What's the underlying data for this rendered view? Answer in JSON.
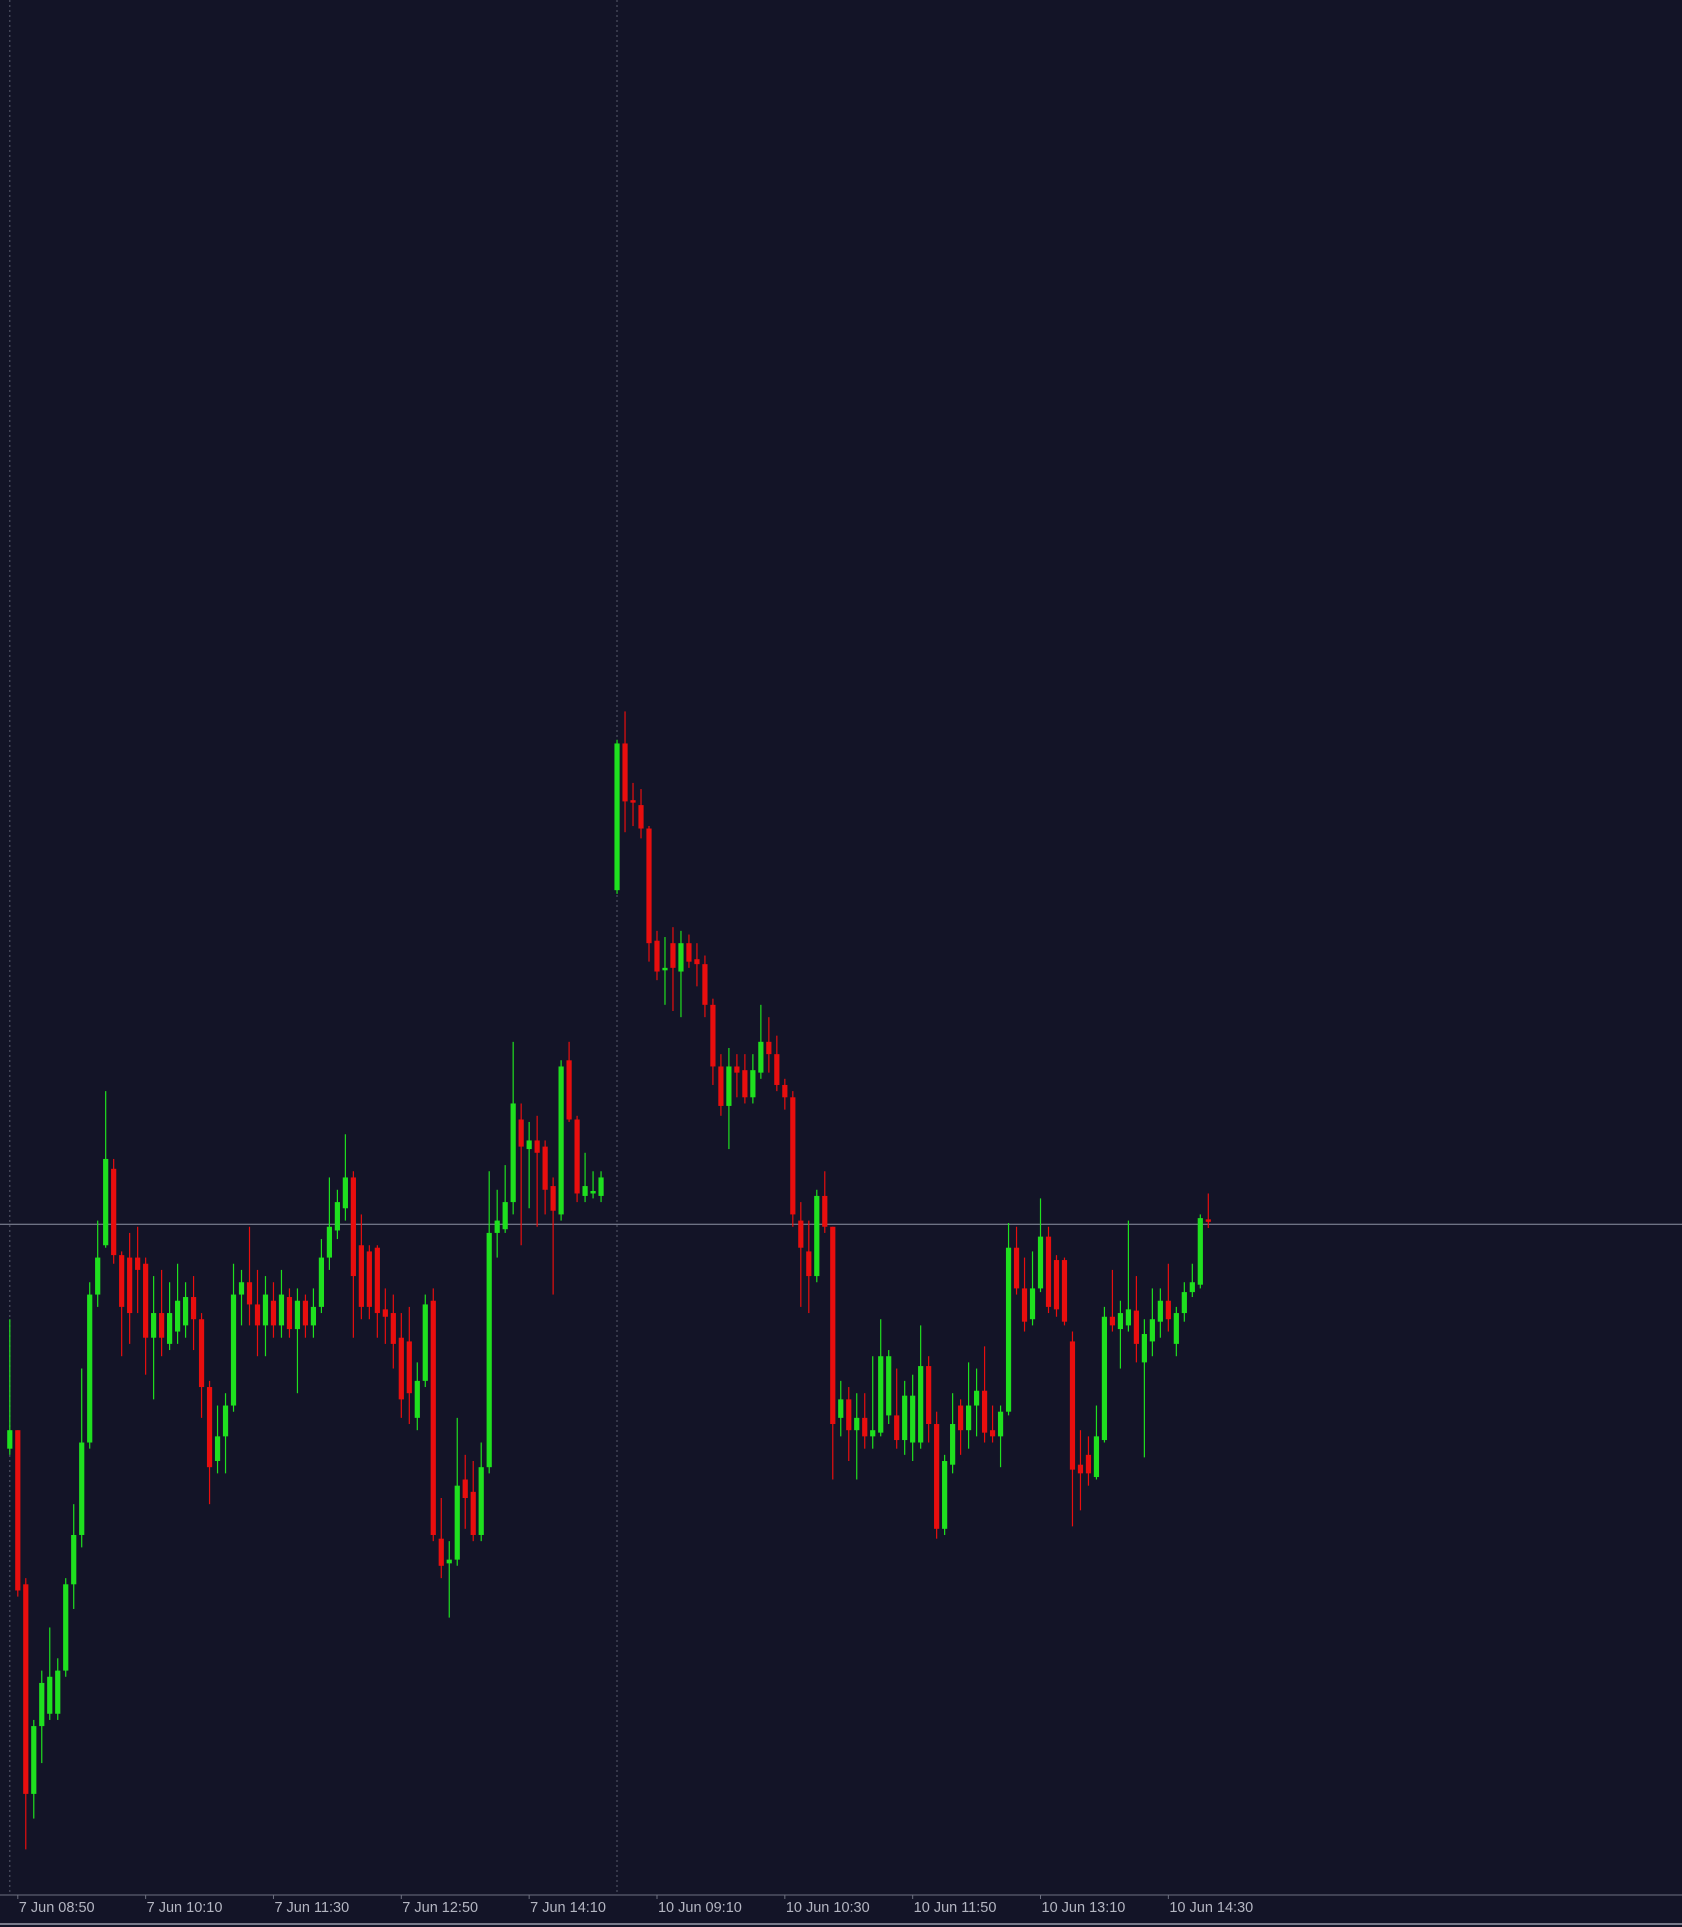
{
  "chart_data": {
    "type": "candlestick",
    "categories": [
      null,
      "7 Jun 08:50",
      null,
      null,
      null,
      null,
      null,
      null,
      null,
      null,
      null,
      null,
      null,
      null,
      null,
      null,
      null,
      "7 Jun 10:10",
      null,
      null,
      null,
      null,
      null,
      null,
      null,
      null,
      null,
      null,
      null,
      null,
      null,
      null,
      null,
      "7 Jun 11:30",
      null,
      null,
      null,
      null,
      null,
      null,
      null,
      null,
      null,
      null,
      null,
      null,
      null,
      null,
      null,
      "7 Jun 12:50",
      null,
      null,
      null,
      null,
      null,
      null,
      null,
      null,
      null,
      null,
      null,
      null,
      null,
      null,
      null,
      "7 Jun 14:10",
      null,
      null,
      null,
      null,
      null,
      null,
      null,
      null,
      null,
      null,
      null,
      null,
      null,
      null,
      null,
      "10 Jun 09:10",
      null,
      null,
      null,
      null,
      null,
      null,
      null,
      null,
      null,
      null,
      null,
      null,
      null,
      null,
      null,
      "10 Jun 10:30",
      null,
      null,
      null,
      null,
      null,
      null,
      null,
      null,
      null,
      null,
      null,
      null,
      null,
      null,
      null,
      "10 Jun 11:50",
      null,
      null,
      null,
      null,
      null,
      null,
      null,
      null,
      null,
      null,
      null,
      null,
      null,
      null,
      null,
      "10 Jun 13:10",
      null,
      null,
      null,
      null,
      null,
      null,
      null,
      null,
      null,
      null,
      null,
      null,
      null,
      null,
      null,
      "10 Jun 14:30",
      null,
      null,
      null,
      null,
      null
    ],
    "open": [
      325,
      340,
      215,
      45,
      100,
      110,
      110,
      145,
      215,
      255,
      330,
      450,
      490,
      552,
      482,
      480,
      480,
      475,
      415,
      435,
      410,
      420,
      425,
      448,
      430,
      375,
      315,
      335,
      360,
      450,
      460,
      442,
      425,
      445,
      425,
      448,
      422,
      445,
      425,
      440,
      480,
      502,
      520,
      545,
      490,
      485,
      488,
      438,
      435,
      415,
      412,
      350,
      380,
      445,
      252,
      232,
      235,
      300,
      290,
      255,
      310,
      500,
      503,
      525,
      592,
      568,
      575,
      570,
      538,
      515,
      640,
      592,
      530,
      532,
      530,
      null,
      778,
      897,
      851,
      847,
      828,
      737,
      713,
      735,
      712,
      735,
      722,
      718,
      685,
      635,
      603,
      635,
      632,
      610,
      630,
      655,
      645,
      620,
      610,
      510,
      485,
      465,
      530,
      505,
      350,
      365,
      340,
      350,
      335,
      338,
      352,
      352,
      332,
      330,
      330,
      392,
      345,
      260,
      312,
      360,
      340,
      360,
      372,
      340,
      335,
      355,
      488,
      455,
      430,
      455,
      497,
      478,
      478,
      412,
      312,
      320,
      302,
      332,
      432,
      422,
      425,
      437,
      395,
      412,
      428,
      445,
      410,
      435,
      452,
      458,
      511
    ],
    "high": [
      430,
      340,
      220,
      105,
      145,
      180,
      155,
      220,
      280,
      390,
      460,
      510,
      615,
      560,
      485,
      500,
      505,
      480,
      465,
      470,
      460,
      475,
      460,
      465,
      435,
      380,
      360,
      370,
      475,
      470,
      505,
      470,
      465,
      460,
      470,
      455,
      455,
      450,
      455,
      495,
      545,
      535,
      580,
      550,
      515,
      490,
      490,
      455,
      450,
      435,
      440,
      395,
      450,
      455,
      285,
      250,
      350,
      320,
      315,
      330,
      550,
      535,
      555,
      655,
      605,
      590,
      595,
      575,
      545,
      640,
      655,
      595,
      565,
      550,
      550,
      null,
      900,
      923,
      865,
      860,
      830,
      745,
      740,
      748,
      745,
      742,
      735,
      725,
      690,
      645,
      650,
      645,
      645,
      645,
      685,
      675,
      660,
      625,
      615,
      525,
      510,
      535,
      550,
      505,
      380,
      375,
      370,
      370,
      400,
      430,
      405,
      390,
      380,
      385,
      425,
      400,
      355,
      320,
      370,
      365,
      395,
      390,
      408,
      360,
      360,
      508,
      505,
      480,
      485,
      528,
      505,
      482,
      480,
      420,
      340,
      335,
      360,
      440,
      470,
      445,
      510,
      465,
      430,
      455,
      455,
      475,
      440,
      460,
      475,
      515,
      532
    ],
    "low": [
      320,
      205,
      0,
      25,
      70,
      105,
      105,
      140,
      195,
      245,
      325,
      440,
      488,
      475,
      400,
      410,
      435,
      385,
      365,
      400,
      405,
      410,
      415,
      405,
      350,
      280,
      305,
      305,
      355,
      425,
      425,
      400,
      400,
      415,
      415,
      415,
      370,
      415,
      415,
      435,
      470,
      495,
      510,
      415,
      430,
      430,
      415,
      410,
      390,
      350,
      345,
      340,
      375,
      250,
      220,
      188,
      230,
      260,
      250,
      250,
      305,
      480,
      500,
      515,
      490,
      520,
      505,
      515,
      450,
      510,
      590,
      525,
      525,
      528,
      525,
      null,
      775,
      825,
      830,
      820,
      720,
      705,
      685,
      680,
      675,
      715,
      700,
      675,
      620,
      595,
      568,
      610,
      605,
      605,
      625,
      630,
      615,
      600,
      505,
      440,
      435,
      460,
      500,
      300,
      335,
      315,
      300,
      325,
      325,
      335,
      345,
      325,
      320,
      315,
      325,
      330,
      252,
      255,
      305,
      320,
      325,
      335,
      330,
      330,
      310,
      352,
      450,
      420,
      425,
      452,
      435,
      432,
      425,
      262,
      275,
      295,
      300,
      330,
      420,
      390,
      420,
      395,
      318,
      400,
      415,
      420,
      400,
      428,
      448,
      455,
      504
    ],
    "close": [
      340,
      210,
      45,
      100,
      135,
      140,
      145,
      215,
      255,
      330,
      450,
      480,
      560,
      482,
      440,
      435,
      470,
      415,
      435,
      415,
      435,
      445,
      448,
      430,
      375,
      310,
      335,
      360,
      450,
      460,
      442,
      425,
      450,
      425,
      450,
      422,
      445,
      425,
      440,
      480,
      505,
      525,
      545,
      465,
      440,
      440,
      435,
      432,
      410,
      365,
      370,
      380,
      442,
      255,
      230,
      235,
      295,
      285,
      255,
      310,
      500,
      510,
      525,
      605,
      570,
      575,
      565,
      535,
      518,
      635,
      592,
      532,
      538,
      534,
      545,
      null,
      897,
      850,
      849,
      828,
      735,
      712,
      715,
      715,
      735,
      720,
      718,
      685,
      635,
      603,
      635,
      630,
      610,
      632,
      655,
      645,
      620,
      610,
      515,
      488,
      465,
      530,
      505,
      345,
      365,
      340,
      350,
      335,
      340,
      400,
      400,
      332,
      368,
      368,
      392,
      345,
      260,
      315,
      345,
      340,
      360,
      372,
      338,
      335,
      355,
      488,
      455,
      428,
      455,
      497,
      440,
      438,
      428,
      308,
      305,
      305,
      335,
      432,
      425,
      435,
      438,
      410,
      418,
      430,
      445,
      430,
      435,
      452,
      460,
      512,
      509
    ],
    "up_color": "#1fe01f",
    "down_color": "#e80e0e",
    "ylim": [
      -37,
      1500
    ],
    "price_line": 507
  }
}
